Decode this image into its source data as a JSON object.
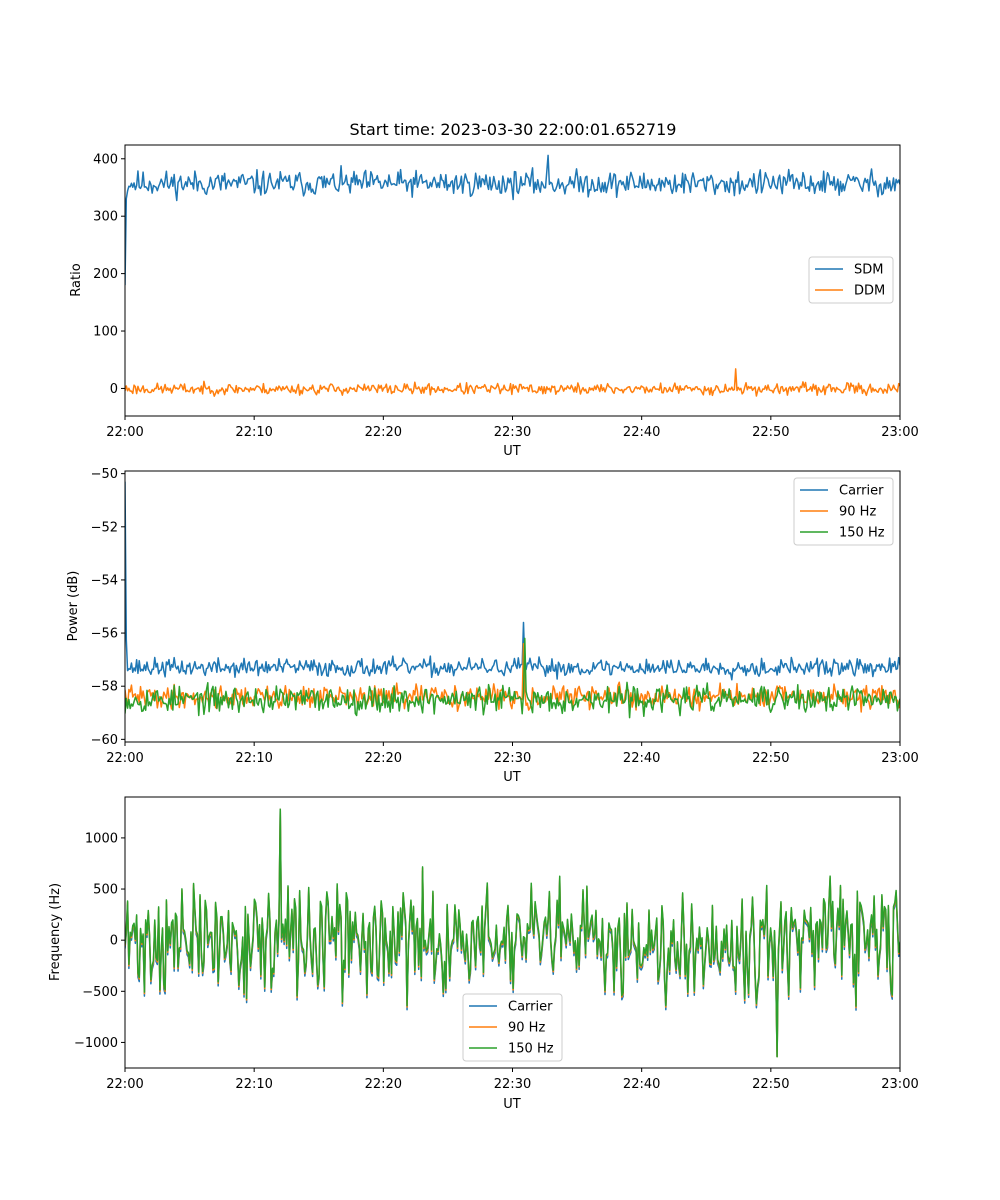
{
  "chart_data": [
    {
      "type": "line",
      "title": "Start time: 2023-03-30 22:00:01.652719",
      "xlabel": "UT",
      "ylabel": "Ratio",
      "x_ticks": [
        "22:00",
        "22:10",
        "22:20",
        "22:30",
        "22:40",
        "22:50",
        "23:00"
      ],
      "x_range_minutes": [
        0,
        60
      ],
      "ylim": [
        -48,
        424
      ],
      "y_ticks": [
        0,
        100,
        200,
        300,
        400
      ],
      "legend_position": "center-right",
      "grid": false,
      "series": [
        {
          "name": "SDM",
          "color": "#1f77b4",
          "start_value": 180,
          "mean": 357,
          "noise_amplitude": 18,
          "peak": 406,
          "peak_at_minute": 32.8,
          "seed": 11
        },
        {
          "name": "DDM",
          "color": "#ff7f0e",
          "mean": -1,
          "noise_amplitude": 8,
          "peak": 34,
          "peak_at_minute": 47.3,
          "seed": 23
        }
      ]
    },
    {
      "type": "line",
      "title": "",
      "xlabel": "UT",
      "ylabel": "Power (dB)",
      "x_ticks": [
        "22:00",
        "22:10",
        "22:20",
        "22:30",
        "22:40",
        "22:50",
        "23:00"
      ],
      "x_range_minutes": [
        0,
        60
      ],
      "ylim": [
        -60.1,
        -49.9
      ],
      "y_ticks": [
        -60,
        -58,
        -56,
        -54,
        -52,
        -50
      ],
      "legend_position": "top-right",
      "grid": false,
      "series": [
        {
          "name": "Carrier",
          "color": "#1f77b4",
          "start_value": -50.3,
          "mean": -57.3,
          "noise_amplitude": 0.28,
          "peak": -55.6,
          "peak_at_minute": 30.9,
          "seed": 37
        },
        {
          "name": "90 Hz",
          "color": "#ff7f0e",
          "mean": -58.4,
          "noise_amplitude": 0.35,
          "peak": -56.4,
          "peak_at_minute": 30.9,
          "seed": 41
        },
        {
          "name": "150 Hz",
          "color": "#2ca02c",
          "mean": -58.5,
          "noise_amplitude": 0.42,
          "peak": -56.2,
          "peak_at_minute": 31.0,
          "seed": 53
        }
      ]
    },
    {
      "type": "line",
      "title": "",
      "xlabel": "UT",
      "ylabel": "Frequency (Hz)",
      "x_ticks": [
        "22:00",
        "22:10",
        "22:20",
        "22:30",
        "22:40",
        "22:50",
        "23:00"
      ],
      "x_range_minutes": [
        0,
        60
      ],
      "ylim": [
        -1250,
        1400
      ],
      "y_ticks": [
        -1000,
        -500,
        0,
        500,
        1000
      ],
      "legend_position": "lower-center",
      "grid": false,
      "series": [
        {
          "name": "Carrier",
          "color": "#1f77b4",
          "mean": 0,
          "noise_amplitude": 420,
          "peak": 1280,
          "peak_at_minute": 12.0,
          "trough": -1140,
          "trough_at_minute": 50.5,
          "offset": -40,
          "seed": 71
        },
        {
          "name": "90 Hz",
          "color": "#ff7f0e",
          "mean": 0,
          "noise_amplitude": 420,
          "peak": 1280,
          "peak_at_minute": 12.0,
          "trough": -1140,
          "trough_at_minute": 50.5,
          "offset": -15,
          "seed": 71
        },
        {
          "name": "150 Hz",
          "color": "#2ca02c",
          "mean": 0,
          "noise_amplitude": 420,
          "peak": 1280,
          "peak_at_minute": 12.0,
          "trough": -1140,
          "trough_at_minute": 50.5,
          "offset": 0,
          "seed": 71
        }
      ]
    }
  ]
}
